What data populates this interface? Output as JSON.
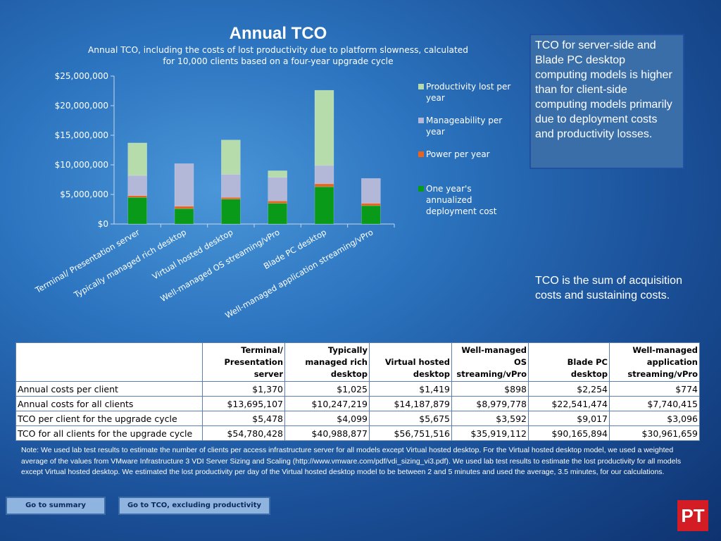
{
  "chart_data": {
    "type": "bar",
    "stacked": true,
    "title": "Annual TCO",
    "subtitle_lines": [
      "Annual TCO, including the costs of lost productivity due to platform slowness, calculated",
      "for 10,000 clients based on a four-year upgrade cycle"
    ],
    "categories": [
      "Terminal/ Presentation server",
      "Typically  managed rich desktop",
      "Virtual hosted desktop",
      "Well-managed OS streaming/vPro",
      "Blade PC desktop",
      "Well-managed application streaming/vPro"
    ],
    "series": [
      {
        "name": "One year's annualized deployment cost",
        "color": "#0a9a1a",
        "values": [
          4500000,
          2600000,
          4200000,
          3500000,
          6300000,
          3100000
        ]
      },
      {
        "name": "Power per year",
        "color": "#e8641e",
        "values": [
          300000,
          400000,
          300000,
          400000,
          500000,
          400000
        ]
      },
      {
        "name": "Manageability per year",
        "color": "#b4b8d8",
        "values": [
          3400000,
          7200000,
          3900000,
          4000000,
          3100000,
          4200000
        ]
      },
      {
        "name": "Productivity lost per year",
        "color": "#b6dcac",
        "values": [
          5500000,
          0,
          5800000,
          1100000,
          12700000,
          0
        ]
      }
    ],
    "legend_order": [
      3,
      2,
      1,
      0
    ],
    "legend_labels": [
      [
        "Productivity lost per",
        "year"
      ],
      [
        "Manageability per",
        "year"
      ],
      [
        "Power per year"
      ],
      [
        "One year's",
        "annualized",
        "deployment cost"
      ]
    ],
    "yticks": [
      "$0",
      "$5,000,000",
      "$10,000,000",
      "$15,000,000",
      "$20,000,000",
      "$25,000,000"
    ],
    "ylim": [
      0,
      25000000
    ],
    "legend_position": "right"
  },
  "callout_main": "TCO for server-side and Blade PC desktop computing models is higher than for client-side computing models primarily due to deployment costs and productivity losses.",
  "callout_secondary": "TCO is the sum of acquisition costs and sustaining costs.",
  "table": {
    "headers": [
      "",
      "Terminal/ Presentation server",
      "Typically managed rich desktop",
      "Virtual hosted desktop",
      "Well-managed OS streaming/vPro",
      "Blade PC desktop",
      "Well-managed application streaming/vPro"
    ],
    "rows": [
      [
        "Annual costs per client",
        "$1,370",
        "$1,025",
        "$1,419",
        "$898",
        "$2,254",
        "$774"
      ],
      [
        "Annual costs for all clients",
        "$13,695,107",
        "$10,247,219",
        "$14,187,879",
        "$8,979,778",
        "$22,541,474",
        "$7,740,415"
      ],
      [
        "TCO per client for the upgrade cycle",
        "$5,478",
        "$4,099",
        "$5,675",
        "$3,592",
        "$9,017",
        "$3,096"
      ],
      [
        "TCO for all clients for the upgrade cycle",
        "$54,780,428",
        "$40,988,877",
        "$56,751,516",
        "$35,919,112",
        "$90,165,894",
        "$30,961,659"
      ]
    ]
  },
  "note": {
    "before_link": "Note: We used lab test results to estimate the number of clients per access infrastructure server for all models except Virtual hosted desktop. For the Virtual hosted desktop model, we used a weighted average of the values from VMware Infrastructure 3 VDI Server Sizing and Scaling (",
    "link": "http://www.vmware.com/pdf/vdi_sizing_vi3.pdf",
    "after_link": "). We used lab test results to estimate the lost productivity for all models except Virtual hosted desktop. We estimated the lost productivity per day of the Virtual hosted desktop model to be between 2 and 5 minutes and used the average, 3.5 minutes, for our calculations."
  },
  "buttons": {
    "summary": "Go to summary",
    "excluding": "Go to TCO, excluding productivity"
  },
  "logo_text": "PT"
}
